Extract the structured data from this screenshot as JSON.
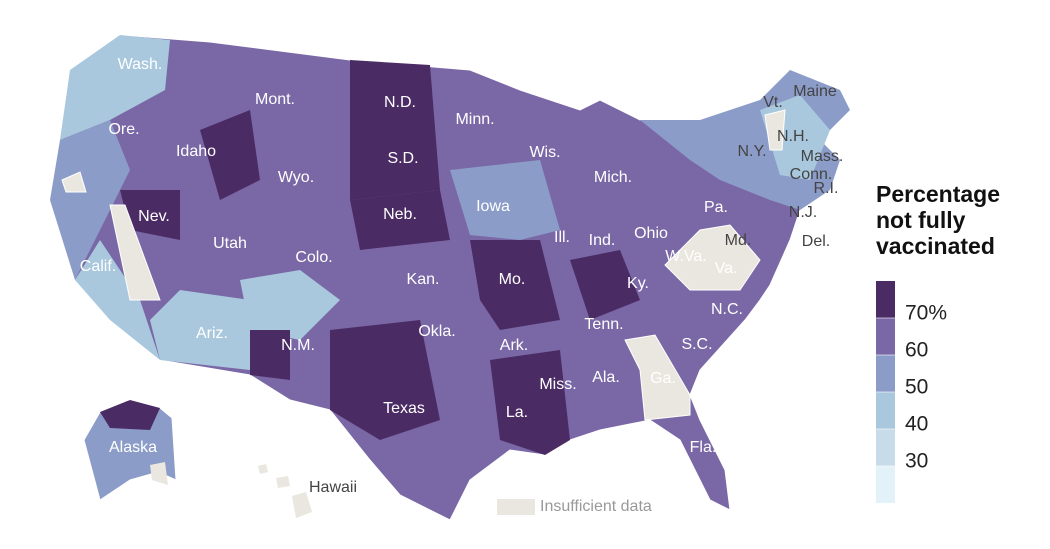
{
  "map": {
    "labels": [
      "Wash.",
      "Mont.",
      "N.D.",
      "Minn.",
      "Vt.",
      "Maine",
      "N.H.",
      "Mass.",
      "N.Y.",
      "Conn.",
      "R.I.",
      "N.J.",
      "Del.",
      "Md.",
      "Pa.",
      "Ore.",
      "Idaho",
      "Wyo.",
      "S.D.",
      "Wis.",
      "Mich.",
      "Nev.",
      "Neb.",
      "Iowa",
      "Ill.",
      "Ind.",
      "Ohio",
      "Utah",
      "Colo.",
      "Calif.",
      "W.Va.",
      "Va.",
      "Kan.",
      "Mo.",
      "Ky.",
      "N.C.",
      "Tenn.",
      "Ariz.",
      "N.M.",
      "Okla.",
      "Ark.",
      "S.C.",
      "Miss.",
      "Ala.",
      "Ga.",
      "Texas",
      "La.",
      "Fla.",
      "Alaska",
      "Hawaii"
    ],
    "insufficient_data": "Insufficient data"
  },
  "legend": {
    "title": "Percentage not fully vaccinated",
    "colors": [
      "#4b2b64",
      "#7a68a6",
      "#8c9cc8",
      "#a9c8de",
      "#c7dbe8",
      "#e3f1f8"
    ],
    "ticks": [
      {
        "value": 70,
        "label": "70%"
      },
      60,
      50,
      40,
      30
    ]
  }
}
